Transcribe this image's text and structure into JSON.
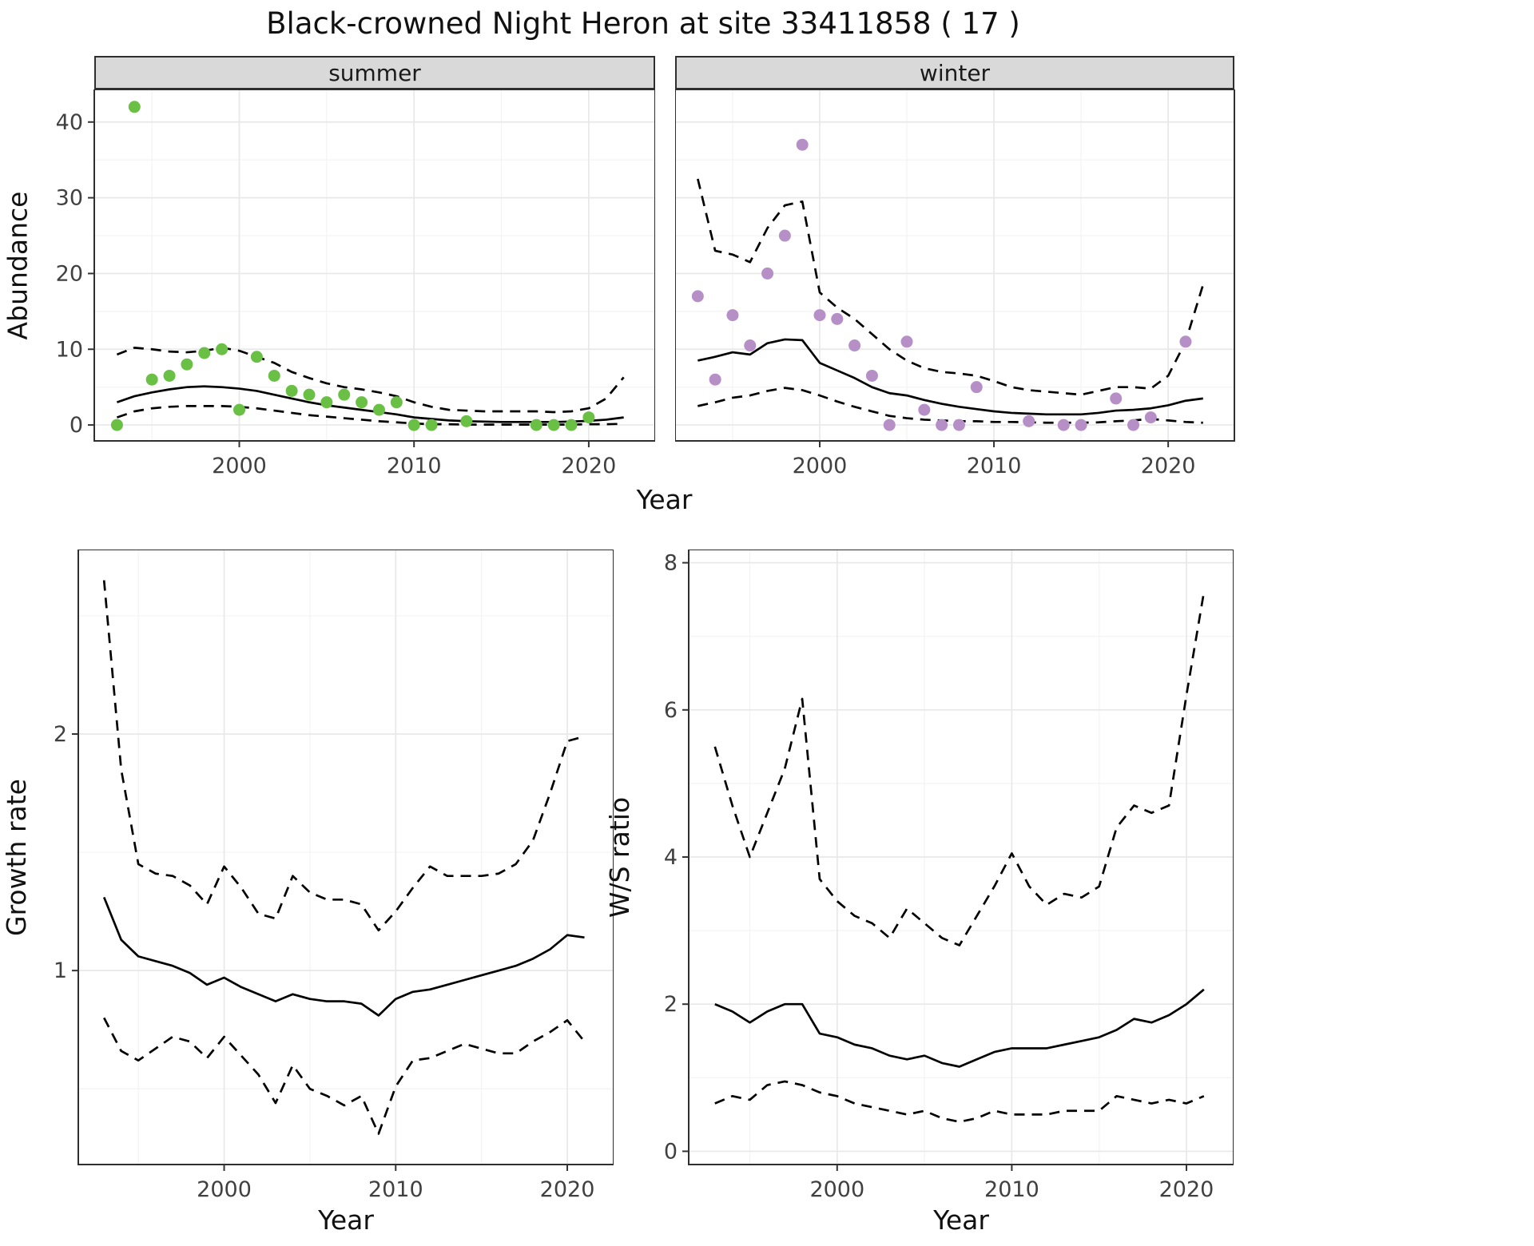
{
  "title": "Black-crowned Night Heron at site 33411858 ( 17 )",
  "labels": {
    "facet_summer": "summer",
    "facet_winter": "winter",
    "abundance_ylabel": "Abundance",
    "xlabel": "Year",
    "growth_ylabel": "Growth rate",
    "ws_ylabel": "W/S ratio"
  },
  "colors": {
    "summer_point": "#6abf45",
    "winter_point": "#b58fc6",
    "line": "#000000",
    "strip_bg": "#d9d9d9",
    "grid_major": "#e8e8e8",
    "grid_minor": "#f3f3f3",
    "panel_border": "#2f2f2f"
  },
  "chart_data": [
    {
      "id": "abundance_summer",
      "type": "scatter",
      "facet": "summer",
      "xlabel": "Year",
      "ylabel": "Abundance",
      "axes": {
        "xlim": [
          1991.7,
          2023.8
        ],
        "ylim": [
          -2.1,
          44.3
        ],
        "xticks": [
          2000,
          2010,
          2020
        ],
        "xminor": [
          1995,
          2005,
          2015
        ],
        "yticks": [
          0,
          10,
          20,
          30,
          40
        ],
        "yminor": [
          5,
          15,
          25,
          35
        ],
        "show_y_tick_labels": true
      },
      "years": [
        1993,
        1994,
        1995,
        1996,
        1997,
        1998,
        1999,
        2000,
        2001,
        2002,
        2003,
        2004,
        2005,
        2006,
        2007,
        2008,
        2009,
        2010,
        2011,
        2012,
        2013,
        2014,
        2015,
        2016,
        2017,
        2018,
        2019,
        2020,
        2021,
        2022
      ],
      "series": [
        {
          "name": "fit",
          "style": "solid",
          "y": [
            3.0,
            3.8,
            4.3,
            4.7,
            5.0,
            5.1,
            5.0,
            4.8,
            4.5,
            4.0,
            3.5,
            3.0,
            2.6,
            2.3,
            2.0,
            1.7,
            1.4,
            1.0,
            0.8,
            0.6,
            0.5,
            0.45,
            0.4,
            0.4,
            0.4,
            0.4,
            0.45,
            0.55,
            0.7,
            1.0
          ]
        },
        {
          "name": "upper_ci",
          "style": "dashed",
          "y": [
            9.3,
            10.2,
            10.0,
            9.7,
            9.6,
            9.8,
            10.2,
            9.8,
            9.0,
            8.2,
            7.0,
            6.2,
            5.5,
            5.0,
            4.7,
            4.3,
            3.8,
            3.0,
            2.4,
            2.0,
            1.9,
            1.8,
            1.8,
            1.8,
            1.8,
            1.7,
            1.8,
            2.2,
            3.5,
            6.3
          ]
        },
        {
          "name": "lower_ci",
          "style": "dashed",
          "y": [
            1.0,
            1.8,
            2.2,
            2.4,
            2.5,
            2.5,
            2.5,
            2.4,
            2.2,
            1.9,
            1.6,
            1.3,
            1.1,
            0.9,
            0.7,
            0.5,
            0.35,
            0.2,
            0.1,
            0.1,
            0.05,
            0.05,
            0.05,
            0.05,
            0.05,
            0.05,
            0.05,
            0.1,
            0.1,
            0.15
          ]
        }
      ],
      "points": {
        "color": "#6abf45",
        "x": [
          1993,
          1994,
          1995,
          1996,
          1997,
          1998,
          1999,
          2000,
          2001,
          2002,
          2003,
          2004,
          2005,
          2006,
          2007,
          2008,
          2009,
          2010,
          2011,
          2013,
          2017,
          2018,
          2019,
          2020
        ],
        "y": [
          0,
          42,
          6,
          6.5,
          8,
          9.5,
          10,
          2,
          9,
          6.5,
          4.5,
          4,
          3,
          4,
          3,
          2,
          3,
          0,
          0,
          0.5,
          0,
          0,
          0,
          1
        ]
      }
    },
    {
      "id": "abundance_winter",
      "type": "scatter",
      "facet": "winter",
      "xlabel": "Year",
      "ylabel": "Abundance",
      "axes": {
        "xlim": [
          1991.7,
          2023.8
        ],
        "ylim": [
          -2.1,
          44.3
        ],
        "xticks": [
          2000,
          2010,
          2020
        ],
        "xminor": [
          1995,
          2005,
          2015
        ],
        "yticks": [
          0,
          10,
          20,
          30,
          40
        ],
        "yminor": [
          5,
          15,
          25,
          35
        ],
        "show_y_tick_labels": false
      },
      "years": [
        1993,
        1994,
        1995,
        1996,
        1997,
        1998,
        1999,
        2000,
        2001,
        2002,
        2003,
        2004,
        2005,
        2006,
        2007,
        2008,
        2009,
        2010,
        2011,
        2012,
        2013,
        2014,
        2015,
        2016,
        2017,
        2018,
        2019,
        2020,
        2021,
        2022
      ],
      "series": [
        {
          "name": "fit",
          "style": "solid",
          "y": [
            8.5,
            9.0,
            9.6,
            9.3,
            10.8,
            11.3,
            11.2,
            8.2,
            7.2,
            6.2,
            5.0,
            4.2,
            3.9,
            3.3,
            2.8,
            2.4,
            2.1,
            1.8,
            1.6,
            1.5,
            1.4,
            1.4,
            1.4,
            1.6,
            1.9,
            2.0,
            2.2,
            2.6,
            3.2,
            3.5
          ]
        },
        {
          "name": "upper_ci",
          "style": "dashed",
          "y": [
            32.5,
            23.0,
            22.5,
            21.5,
            26.0,
            29.0,
            29.5,
            17.5,
            15.5,
            14.0,
            12.0,
            10.0,
            8.5,
            7.5,
            7.0,
            6.8,
            6.5,
            5.8,
            5.0,
            4.6,
            4.4,
            4.2,
            4.0,
            4.5,
            5.0,
            5.0,
            4.8,
            6.5,
            11.0,
            18.5
          ]
        },
        {
          "name": "lower_ci",
          "style": "dashed",
          "y": [
            2.5,
            3.0,
            3.6,
            3.9,
            4.5,
            4.9,
            4.6,
            3.9,
            3.1,
            2.4,
            1.8,
            1.2,
            0.9,
            0.7,
            0.6,
            0.5,
            0.5,
            0.4,
            0.4,
            0.35,
            0.3,
            0.3,
            0.3,
            0.35,
            0.5,
            0.6,
            0.8,
            0.6,
            0.4,
            0.3
          ]
        }
      ],
      "points": {
        "color": "#b58fc6",
        "x": [
          1993,
          1994,
          1995,
          1996,
          1997,
          1998,
          1999,
          2000,
          2001,
          2002,
          2003,
          2004,
          2005,
          2006,
          2007,
          2008,
          2009,
          2012,
          2014,
          2015,
          2017,
          2018,
          2019,
          2021
        ],
        "y": [
          17,
          6,
          14.5,
          10.5,
          20,
          25,
          37,
          14.5,
          14,
          10.5,
          6.5,
          0,
          11,
          2,
          0,
          0,
          5,
          0.5,
          0,
          0,
          3.5,
          0,
          1,
          11
        ]
      }
    },
    {
      "id": "growth_rate",
      "type": "line",
      "xlabel": "Year",
      "ylabel": "Growth rate",
      "axes": {
        "xlim": [
          1991.5,
          2022.7
        ],
        "ylim": [
          0.18,
          2.78
        ],
        "xticks": [
          2000,
          2010,
          2020
        ],
        "xminor": [
          1995,
          2005,
          2015
        ],
        "yticks": [
          1,
          2
        ],
        "yminor": [
          0.5,
          1.5,
          2.5
        ],
        "show_y_tick_labels": true
      },
      "years": [
        1993,
        1994,
        1995,
        1996,
        1997,
        1998,
        1999,
        2000,
        2001,
        2002,
        2003,
        2004,
        2005,
        2006,
        2007,
        2008,
        2009,
        2010,
        2011,
        2012,
        2013,
        2014,
        2015,
        2016,
        2017,
        2018,
        2019,
        2020,
        2021
      ],
      "series": [
        {
          "name": "fit",
          "style": "solid",
          "y": [
            1.31,
            1.13,
            1.06,
            1.04,
            1.02,
            0.99,
            0.94,
            0.97,
            0.93,
            0.9,
            0.87,
            0.9,
            0.88,
            0.87,
            0.87,
            0.86,
            0.81,
            0.88,
            0.91,
            0.92,
            0.94,
            0.96,
            0.98,
            1.0,
            1.02,
            1.05,
            1.09,
            1.15,
            1.14
          ]
        },
        {
          "name": "upper_ci",
          "style": "dashed",
          "y": [
            2.65,
            1.85,
            1.45,
            1.41,
            1.4,
            1.36,
            1.28,
            1.44,
            1.35,
            1.24,
            1.22,
            1.4,
            1.33,
            1.3,
            1.3,
            1.28,
            1.17,
            1.25,
            1.35,
            1.44,
            1.4,
            1.4,
            1.4,
            1.41,
            1.45,
            1.55,
            1.75,
            1.97,
            1.99
          ]
        },
        {
          "name": "lower_ci",
          "style": "dashed",
          "y": [
            0.8,
            0.66,
            0.62,
            0.67,
            0.72,
            0.7,
            0.63,
            0.72,
            0.64,
            0.56,
            0.44,
            0.6,
            0.5,
            0.47,
            0.43,
            0.47,
            0.31,
            0.51,
            0.62,
            0.63,
            0.66,
            0.69,
            0.67,
            0.65,
            0.65,
            0.7,
            0.74,
            0.79,
            0.7
          ]
        }
      ]
    },
    {
      "id": "ws_ratio",
      "type": "line",
      "xlabel": "Year",
      "ylabel": "W/S ratio",
      "axes": {
        "xlim": [
          1991.5,
          2022.7
        ],
        "ylim": [
          -0.18,
          8.18
        ],
        "xticks": [
          2000,
          2010,
          2020
        ],
        "xminor": [
          1995,
          2005,
          2015
        ],
        "yticks": [
          0,
          2,
          4,
          6,
          8
        ],
        "yminor": [
          1,
          3,
          5,
          7
        ],
        "show_y_tick_labels": true
      },
      "years": [
        1993,
        1994,
        1995,
        1996,
        1997,
        1998,
        1999,
        2000,
        2001,
        2002,
        2003,
        2004,
        2005,
        2006,
        2007,
        2008,
        2009,
        2010,
        2011,
        2012,
        2013,
        2014,
        2015,
        2016,
        2017,
        2018,
        2019,
        2020,
        2021
      ],
      "series": [
        {
          "name": "fit",
          "style": "solid",
          "y": [
            2.0,
            1.9,
            1.75,
            1.9,
            2.0,
            2.0,
            1.6,
            1.55,
            1.45,
            1.4,
            1.3,
            1.25,
            1.3,
            1.2,
            1.15,
            1.25,
            1.35,
            1.4,
            1.4,
            1.4,
            1.45,
            1.5,
            1.55,
            1.65,
            1.8,
            1.75,
            1.85,
            2.0,
            2.2
          ]
        },
        {
          "name": "upper_ci",
          "style": "dashed",
          "y": [
            5.5,
            4.7,
            4.0,
            4.6,
            5.2,
            6.15,
            3.7,
            3.4,
            3.2,
            3.1,
            2.9,
            3.3,
            3.1,
            2.9,
            2.8,
            3.2,
            3.6,
            4.05,
            3.6,
            3.35,
            3.5,
            3.45,
            3.6,
            4.4,
            4.7,
            4.6,
            4.7,
            6.2,
            7.6
          ]
        },
        {
          "name": "lower_ci",
          "style": "dashed",
          "y": [
            0.65,
            0.75,
            0.7,
            0.9,
            0.95,
            0.9,
            0.8,
            0.75,
            0.65,
            0.6,
            0.55,
            0.5,
            0.55,
            0.45,
            0.4,
            0.45,
            0.55,
            0.5,
            0.5,
            0.5,
            0.55,
            0.55,
            0.55,
            0.75,
            0.7,
            0.65,
            0.7,
            0.65,
            0.75
          ]
        }
      ]
    }
  ]
}
